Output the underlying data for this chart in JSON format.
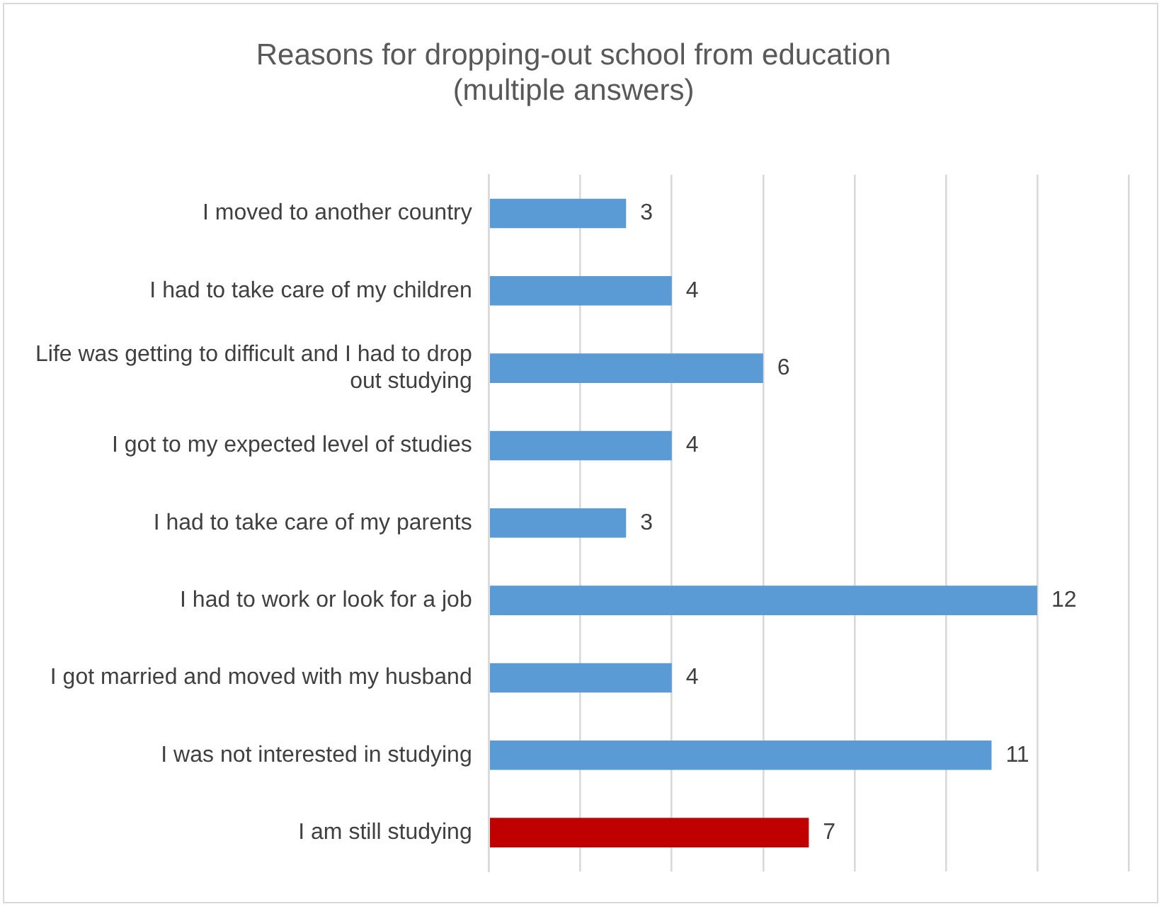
{
  "chart_data": {
    "type": "bar",
    "orientation": "horizontal",
    "title": "Reasons for dropping-out school from education\n(multiple answers)",
    "categories": [
      "I moved to another country",
      "I had to take care of my children",
      "Life was getting to difficult and I had to drop out studying",
      "I got to my expected level of studies",
      "I had to take care of my parents",
      "I had to work or look for a job",
      "I got married and moved with my husband",
      "I was not interested in studying",
      "I am still studying"
    ],
    "values": [
      3,
      4,
      6,
      4,
      3,
      12,
      4,
      11,
      7
    ],
    "colors": [
      "#5b9bd5",
      "#5b9bd5",
      "#5b9bd5",
      "#5b9bd5",
      "#5b9bd5",
      "#5b9bd5",
      "#5b9bd5",
      "#5b9bd5",
      "#c00000"
    ],
    "grid": "x",
    "tick_labels": "y",
    "data_labels": true,
    "legend": false
  }
}
